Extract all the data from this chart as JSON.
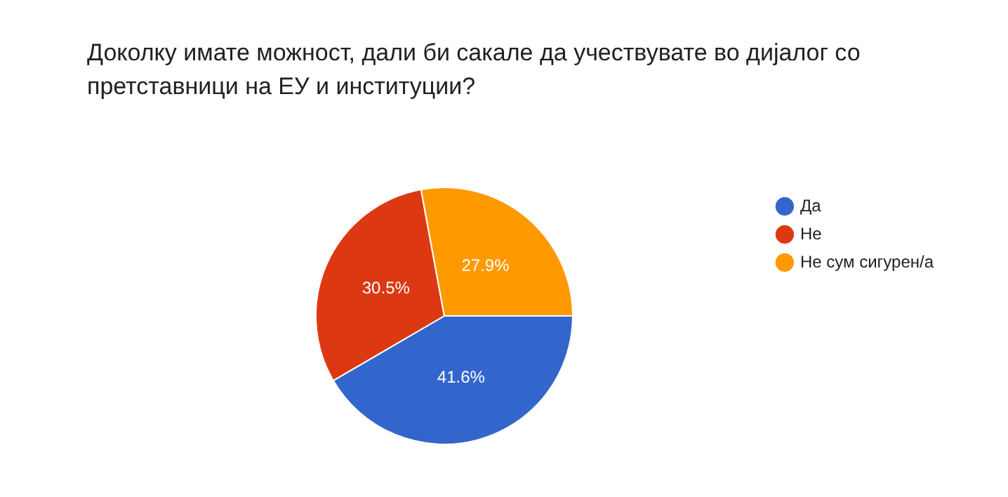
{
  "chart_data": {
    "type": "pie",
    "title": "Доколку имате можност, дали би сакале да учествувате во дијалог со претставници на ЕУ и институции?",
    "categories": [
      "Да",
      "Не",
      "Не сум сигурен/а"
    ],
    "values": [
      41.6,
      30.5,
      27.9
    ],
    "colors": [
      "#3366cc",
      "#dc3912",
      "#ff9900"
    ],
    "value_labels": [
      "41.6%",
      "30.5%",
      "27.9%"
    ],
    "legend": "right"
  }
}
